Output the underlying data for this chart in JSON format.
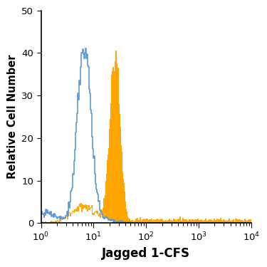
{
  "title": "",
  "xlabel": "Jagged 1-CFS",
  "ylabel": "Relative Cell Number",
  "ylim": [
    0,
    50
  ],
  "yticks": [
    0,
    10,
    20,
    30,
    40,
    50
  ],
  "background_color": "#ffffff",
  "open_histogram_color": "#5b9bd5",
  "filled_histogram_color": "#FFA500",
  "isotype_peak_log10": 0.82,
  "isotype_peak_val": 41,
  "antibody_peak_log10": 1.4,
  "antibody_peak_val": 40.5,
  "iso_log_mean": 0.82,
  "iso_log_std": 0.13,
  "ab_log_mean": 1.4,
  "ab_log_std": 0.095,
  "n_bins": 300
}
